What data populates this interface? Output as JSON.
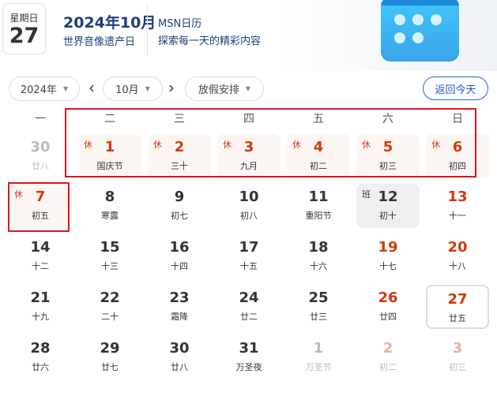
{
  "header": {
    "weekday": "星期日",
    "day": "27",
    "year_month": "2024年10月",
    "festival": "世界音像遗产日",
    "app_name": "MSN日历",
    "slogan": "探索每一天的精彩内容"
  },
  "toolbar": {
    "year": "2024年",
    "month": "10月",
    "holiday": "放假安排",
    "today": "返回今天"
  },
  "weekdays": [
    "一",
    "二",
    "三",
    "四",
    "五",
    "六",
    "日"
  ],
  "days": [
    {
      "n": "30",
      "l": "廿八",
      "s": "dim"
    },
    {
      "n": "1",
      "l": "国庆节",
      "s": "hol red",
      "tag": "休"
    },
    {
      "n": "2",
      "l": "三十",
      "s": "hol red",
      "tag": "休"
    },
    {
      "n": "3",
      "l": "九月",
      "s": "hol red",
      "tag": "休"
    },
    {
      "n": "4",
      "l": "初二",
      "s": "hol red",
      "tag": "休"
    },
    {
      "n": "5",
      "l": "初三",
      "s": "hol red",
      "tag": "休"
    },
    {
      "n": "6",
      "l": "初四",
      "s": "hol red",
      "tag": "休"
    },
    {
      "n": "7",
      "l": "初五",
      "s": "hol red",
      "tag": "休"
    },
    {
      "n": "8",
      "l": "寒露",
      "s": ""
    },
    {
      "n": "9",
      "l": "初七",
      "s": ""
    },
    {
      "n": "10",
      "l": "初八",
      "s": ""
    },
    {
      "n": "11",
      "l": "重阳节",
      "s": ""
    },
    {
      "n": "12",
      "l": "初十",
      "s": "work",
      "tag": "班"
    },
    {
      "n": "13",
      "l": "十一",
      "s": "red"
    },
    {
      "n": "14",
      "l": "十二",
      "s": ""
    },
    {
      "n": "15",
      "l": "十三",
      "s": ""
    },
    {
      "n": "16",
      "l": "十四",
      "s": ""
    },
    {
      "n": "17",
      "l": "十五",
      "s": ""
    },
    {
      "n": "18",
      "l": "十六",
      "s": ""
    },
    {
      "n": "19",
      "l": "十七",
      "s": "red"
    },
    {
      "n": "20",
      "l": "十八",
      "s": "red"
    },
    {
      "n": "21",
      "l": "十九",
      "s": ""
    },
    {
      "n": "22",
      "l": "二十",
      "s": ""
    },
    {
      "n": "23",
      "l": "霜降",
      "s": ""
    },
    {
      "n": "24",
      "l": "廿二",
      "s": ""
    },
    {
      "n": "25",
      "l": "廿三",
      "s": ""
    },
    {
      "n": "26",
      "l": "廿四",
      "s": "red"
    },
    {
      "n": "27",
      "l": "廿五",
      "s": "red todaycell"
    },
    {
      "n": "28",
      "l": "廿六",
      "s": ""
    },
    {
      "n": "29",
      "l": "廿七",
      "s": ""
    },
    {
      "n": "30",
      "l": "廿八",
      "s": ""
    },
    {
      "n": "31",
      "l": "万圣夜",
      "s": ""
    },
    {
      "n": "1",
      "l": "万圣节",
      "s": "dim"
    },
    {
      "n": "2",
      "l": "初二",
      "s": "pink"
    },
    {
      "n": "3",
      "l": "初三",
      "s": "pink"
    }
  ],
  "colors": {
    "accent": "#2255cc",
    "holiday_red": "#d4380d",
    "annotation": "#e0141e"
  }
}
